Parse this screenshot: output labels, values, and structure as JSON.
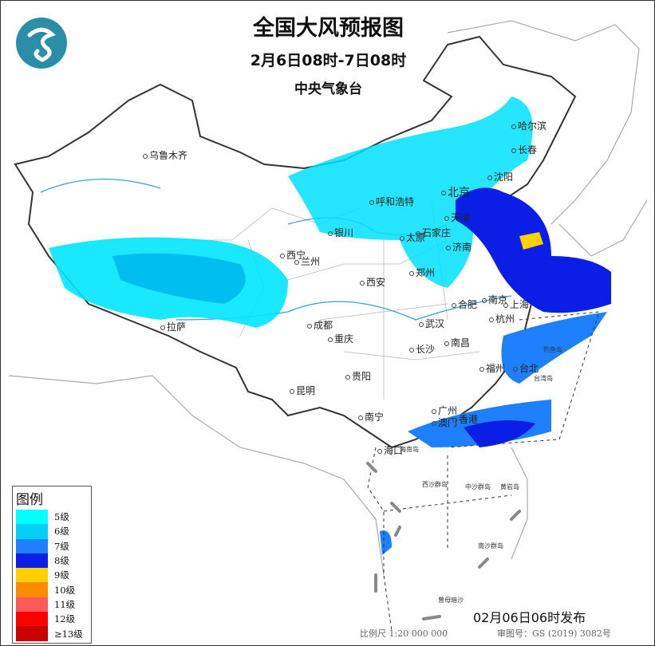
{
  "header": {
    "title": "全国大风预报图",
    "period": "2月6日08时-7日08时",
    "agency": "中央气象台",
    "logo": "cma-logo"
  },
  "legend": {
    "title": "图例",
    "items": [
      {
        "label": "5级",
        "color": "#00FFFF"
      },
      {
        "label": "6级",
        "color": "#00D0F5"
      },
      {
        "label": "7级",
        "color": "#1E7FFF"
      },
      {
        "label": "8级",
        "color": "#0A1EE6"
      },
      {
        "label": "9级",
        "color": "#FFD000"
      },
      {
        "label": "10级",
        "color": "#FF8C00"
      },
      {
        "label": "11级",
        "color": "#FF5A5A"
      },
      {
        "label": "12级",
        "color": "#FF0000"
      },
      {
        "label": "≥13级",
        "color": "#C80000"
      }
    ]
  },
  "cities": [
    "乌鲁木齐",
    "哈尔滨",
    "长春",
    "沈阳",
    "北京",
    "天津",
    "呼和浩特",
    "银川",
    "太原",
    "石家庄",
    "济南",
    "西宁",
    "兰州",
    "郑州",
    "西安",
    "合肥",
    "南京",
    "上海",
    "杭州",
    "武汉",
    "成都",
    "重庆",
    "长沙",
    "南昌",
    "拉萨",
    "福州",
    "台北",
    "贵阳",
    "昆明",
    "南宁",
    "广州",
    "澳门",
    "香港",
    "海口"
  ],
  "islands": [
    "台湾岛",
    "钓鱼岛",
    "海南岛",
    "西沙群岛",
    "中沙群岛",
    "黄岩岛",
    "南沙群岛",
    "曾母暗沙"
  ],
  "footer": {
    "issued": "02月06日06时发布",
    "scale": "比例尺 1:20 000 000",
    "approval": "审图号：GS (2019) 3082号"
  }
}
